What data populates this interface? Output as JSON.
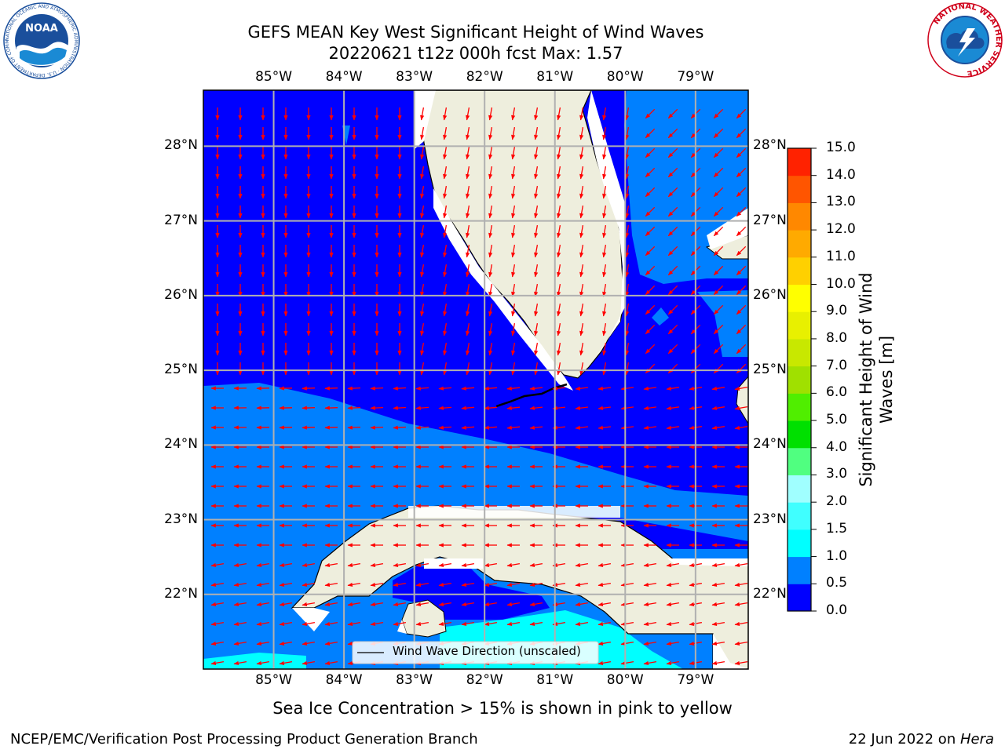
{
  "header": {
    "title_line1": "GEFS MEAN Key West Significant Height of Wind Waves",
    "title_line2": "20220621 t12z 000h fcst   Max: 1.57"
  },
  "logos": {
    "left": {
      "text": "NOAA",
      "ring_text": "NATIONAL OCEANIC AND ATMOSPHERIC ADMINISTRATION · U.S. DEPARTMENT OF COMMERCE",
      "color": "#1a4f9c"
    },
    "right": {
      "ring_text": "NATIONAL WEATHER SERVICE",
      "color": "#d0021b"
    }
  },
  "map": {
    "lon_labels": [
      "85°W",
      "84°W",
      "83°W",
      "82°W",
      "81°W",
      "80°W",
      "79°W"
    ],
    "lat_labels": [
      "28°N",
      "27°N",
      "26°N",
      "25°N",
      "24°N",
      "23°N",
      "22°N"
    ],
    "extent": {
      "lon_min": -86.0,
      "lon_max": -78.25,
      "lat_min": 21.0,
      "lat_max": 28.75
    },
    "legend_label": "Wind Wave Direction (unscaled)",
    "colors": {
      "land": "#eeeedd",
      "deep": "#0000ff",
      "mid": "#0080ff",
      "cyan": "#00ffff",
      "arrow": "#ff0000",
      "grid": "#b0b0b0"
    }
  },
  "colorbar": {
    "label_line1": "Significant Height of Wind",
    "label_line2": "Waves [m]",
    "ticks": [
      "0.0",
      "0.5",
      "1.0",
      "1.5",
      "2.0",
      "3.0",
      "4.0",
      "5.0",
      "6.0",
      "7.0",
      "8.0",
      "9.0",
      "10.0",
      "11.0",
      "12.0",
      "13.0",
      "14.0",
      "15.0"
    ],
    "colors": [
      "#0000ff",
      "#0080ff",
      "#00ffff",
      "#40ffff",
      "#a0ffff",
      "#50ff80",
      "#00e000",
      "#50ee00",
      "#a0e000",
      "#c8e800",
      "#e8f000",
      "#ffff00",
      "#ffd000",
      "#ffaa00",
      "#ff8800",
      "#ff5500",
      "#ff2200"
    ]
  },
  "footer": {
    "sea_ice_note": "Sea Ice Concentration > 15% is shown in pink to yellow",
    "left": "NCEP/EMC/Verification Post Processing Product Generation Branch",
    "right_date": "22 Jun 2022 on ",
    "right_machine": "Hera"
  }
}
